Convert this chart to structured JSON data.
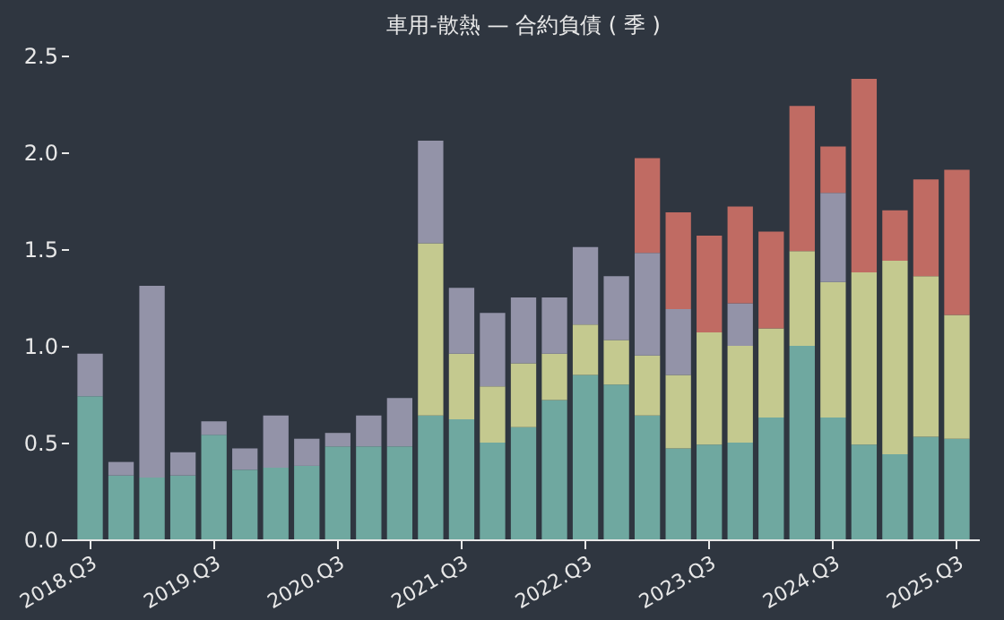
{
  "chart_data": {
    "type": "bar",
    "title": "車用-散熱 — 合約負債 ( 季 )",
    "stacked": true,
    "categories": [
      "2018.Q3",
      null,
      null,
      null,
      "2019.Q3",
      null,
      null,
      null,
      "2020.Q3",
      null,
      null,
      null,
      "2021.Q3",
      null,
      null,
      null,
      "2022.Q3",
      null,
      null,
      null,
      "2023.Q3",
      null,
      null,
      null,
      "2024.Q3",
      null,
      null,
      null,
      "2025.Q3"
    ],
    "series": [
      {
        "color": "#6fa8a0",
        "values": [
          0.74,
          0.33,
          0.32,
          0.33,
          0.54,
          0.36,
          0.37,
          0.38,
          0.48,
          0.48,
          0.48,
          0.64,
          0.62,
          0.5,
          0.58,
          0.72,
          0.85,
          0.8,
          0.64,
          0.47,
          0.49,
          0.5,
          0.63,
          1.0,
          0.63,
          0.49,
          0.44,
          0.53,
          0.52
        ]
      },
      {
        "color": "#c4c98f",
        "values": [
          null,
          null,
          null,
          null,
          null,
          null,
          null,
          null,
          null,
          null,
          null,
          0.89,
          0.34,
          0.29,
          0.33,
          0.24,
          0.26,
          0.23,
          0.31,
          0.38,
          0.58,
          0.5,
          0.46,
          0.49,
          0.7,
          0.89,
          1.0,
          0.83,
          0.64
        ]
      },
      {
        "color": "#9393a8",
        "values": [
          0.22,
          0.07,
          0.99,
          0.12,
          0.07,
          0.11,
          0.27,
          0.14,
          0.07,
          0.16,
          0.25,
          0.53,
          0.34,
          0.38,
          0.34,
          0.29,
          0.4,
          0.33,
          0.53,
          0.34,
          null,
          0.22,
          null,
          null,
          0.46,
          null,
          null,
          null,
          null
        ]
      },
      {
        "color": "#c06b63",
        "values": [
          null,
          null,
          null,
          null,
          null,
          null,
          null,
          null,
          null,
          null,
          null,
          null,
          null,
          null,
          null,
          null,
          null,
          null,
          0.49,
          0.5,
          0.5,
          0.5,
          0.5,
          0.75,
          0.24,
          1.0,
          0.26,
          0.5,
          0.75
        ]
      }
    ],
    "ylim": [
      0,
      2.5
    ],
    "yticks": [
      {
        "value": 0,
        "label": "0.0"
      },
      0.5,
      {
        "value": 1,
        "label": "1.0"
      },
      1.5,
      {
        "value": 2,
        "label": "2.0"
      },
      2.5
    ],
    "grid": false,
    "legend": false
  }
}
